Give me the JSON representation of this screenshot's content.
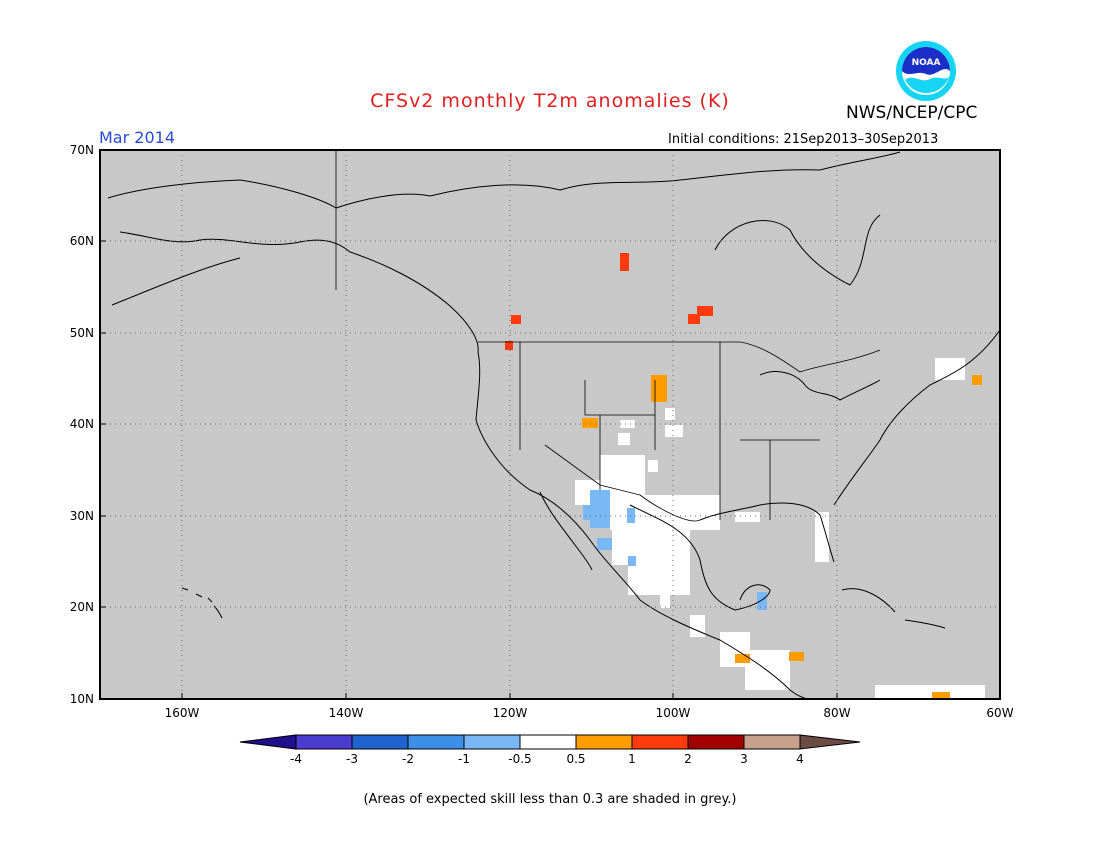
{
  "title": "CFSv2 monthly T2m anomalies (K)",
  "organization": "NWS/NCEP/CPC",
  "logo_text": "NOAA",
  "target_month": "Mar 2014",
  "initial_conditions": "Initial conditions: 21Sep2013–30Sep2013",
  "footnote": "(Areas of expected skill less than 0.3 are shaded in grey.)",
  "map": {
    "lon_range": [
      -170,
      -60
    ],
    "lat_range": [
      10,
      70
    ],
    "lon_ticks": [
      "160W",
      "140W",
      "120W",
      "100W",
      "80W",
      "60W"
    ],
    "lat_ticks": [
      "70N",
      "60N",
      "50N",
      "40N",
      "30N",
      "20N",
      "10N"
    ],
    "grid": "dotted",
    "no_skill_color": "#c8c8c8"
  },
  "colorbar": {
    "labels": [
      "-4",
      "-3",
      "-2",
      "-1",
      "-0.5",
      "0.5",
      "1",
      "2",
      "3",
      "4"
    ],
    "colors": [
      "#1f0f8f",
      "#4a3bd1",
      "#1f63cf",
      "#3d8ee8",
      "#79b8f4",
      "#ffffff",
      "#ff9c00",
      "#ff3a0c",
      "#a00000",
      "#c8a08e",
      "#6b4c44"
    ]
  }
}
